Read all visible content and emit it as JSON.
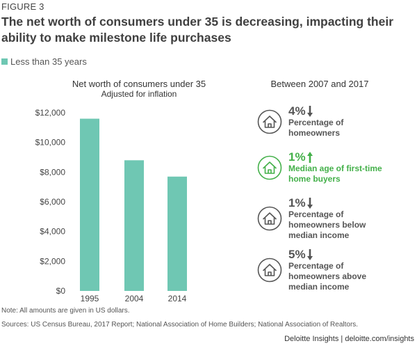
{
  "figure_label": "FIGURE 3",
  "title": "The net worth of consumers under 35 is decreasing, impacting their ability to make milestone life purchases",
  "legend": {
    "label": "Less than 35 years",
    "color": "#6fc7b3"
  },
  "colors": {
    "teal": "#6fc7b3",
    "gray": "#555555",
    "green": "#43b049"
  },
  "chart_data": {
    "type": "bar",
    "title": "Net worth of consumers under 35",
    "subtitle": "Adjusted for inflation",
    "categories": [
      "1995",
      "2004",
      "2014"
    ],
    "series": [
      {
        "name": "Less than 35 years",
        "values": [
          11600,
          8800,
          7700
        ]
      }
    ],
    "yticks": [
      0,
      2000,
      4000,
      6000,
      8000,
      10000,
      12000
    ],
    "ytick_labels": [
      "$0",
      "$2,000",
      "$4,000",
      "$6,000",
      "$8,000",
      "$10,000",
      "$12,000"
    ],
    "ylim": [
      0,
      12000
    ],
    "grid": false
  },
  "right_panel": {
    "title": "Between 2007 and 2017",
    "stats": [
      {
        "value": "4%",
        "direction": "down",
        "description": [
          "Percentage of",
          "homeowners"
        ],
        "highlight": false,
        "icon": "house-icon"
      },
      {
        "value": "1%",
        "direction": "up",
        "description": [
          "Median age of first-time",
          "home buyers"
        ],
        "highlight": true,
        "icon": "house-icon"
      },
      {
        "value": "1%",
        "direction": "down",
        "description": [
          "Percentage of",
          "homeowners below",
          "median income"
        ],
        "highlight": false,
        "icon": "house-icon"
      },
      {
        "value": "5%",
        "direction": "down",
        "description": [
          "Percentage of",
          "homeowners above",
          "median income"
        ],
        "highlight": false,
        "icon": "house-icon"
      }
    ]
  },
  "note": "Note: All amounts are given in US dollars.",
  "sources": "Sources: US Census Bureau, 2017 Report; National Association of Home Builders; National Association of Realtors.",
  "footer": "Deloitte Insights | deloitte.com/insights"
}
